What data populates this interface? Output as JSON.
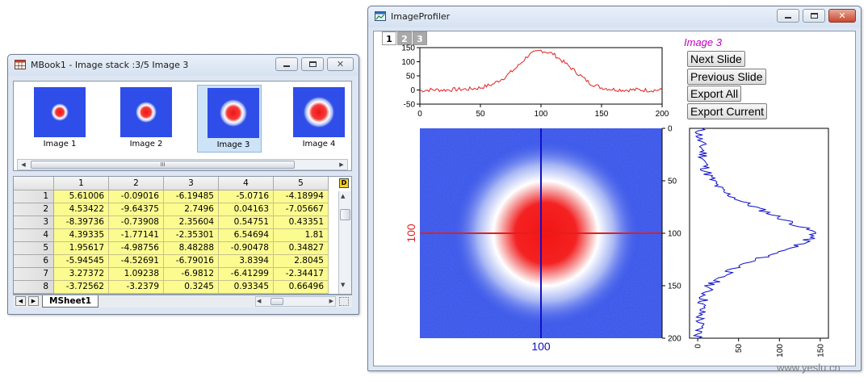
{
  "workbook": {
    "title": "MBook1 - Image stack :3/5 Image 3",
    "thumbnails": [
      {
        "label": "Image 1",
        "selected": false,
        "spot_size": 0.35
      },
      {
        "label": "Image 2",
        "selected": false,
        "spot_size": 0.42
      },
      {
        "label": "Image 3",
        "selected": true,
        "spot_size": 0.55
      },
      {
        "label": "Image 4",
        "selected": false,
        "spot_size": 0.62
      }
    ],
    "thumb_scroll_glyph": "III",
    "columns": [
      "1",
      "2",
      "3",
      "4",
      "5"
    ],
    "rows": [
      {
        "n": "1",
        "cells": [
          "5.61006",
          "-0.09016",
          "-6.19485",
          "-5.0716",
          "-4.18994"
        ]
      },
      {
        "n": "2",
        "cells": [
          "4.53422",
          "-9.64375",
          "2.7496",
          "0.04163",
          "-7.05667"
        ]
      },
      {
        "n": "3",
        "cells": [
          "-8.39736",
          "-0.73908",
          "2.35604",
          "0.54751",
          "0.43351"
        ]
      },
      {
        "n": "4",
        "cells": [
          "4.39335",
          "-1.77141",
          "-2.35301",
          "6.54694",
          "1.81"
        ]
      },
      {
        "n": "5",
        "cells": [
          "1.95617",
          "-4.98756",
          "8.48288",
          "-0.90478",
          "0.34827"
        ]
      },
      {
        "n": "6",
        "cells": [
          "-5.94545",
          "-4.52691",
          "-6.79016",
          "3.8394",
          "2.8045"
        ]
      },
      {
        "n": "7",
        "cells": [
          "3.27372",
          "1.09238",
          "-6.9812",
          "-6.41299",
          "-2.34417"
        ]
      },
      {
        "n": "8",
        "cells": [
          "-3.72562",
          "-3.2379",
          "0.3245",
          "0.93345",
          "0.66496"
        ]
      }
    ],
    "corner_badge": "D",
    "sheet_tab": "MSheet1"
  },
  "profiler": {
    "title": "ImageProfiler",
    "layer_tabs": [
      "1",
      "2",
      "3"
    ],
    "image_label": "Image 3",
    "buttons": [
      "Next Slide",
      "Previous Slide",
      "Export All",
      "Export Current"
    ],
    "crosshair": {
      "x": 100,
      "y": 100,
      "x_label": "100",
      "y_label": "100"
    },
    "colors": {
      "horizontal_profile": "#e02020",
      "vertical_profile": "#1010c8",
      "image_label": "#c000c0",
      "image_bg": "#2f4de8",
      "spot": "#f02020"
    }
  },
  "chart_data": [
    {
      "type": "line",
      "name_hint": "horizontal-profile",
      "xlim": [
        0,
        200
      ],
      "ylim": [
        -50,
        150
      ],
      "xticks": [
        "0",
        "50",
        "100",
        "150",
        "200"
      ],
      "yticks": [
        "150",
        "100",
        "50",
        "0",
        "-50"
      ],
      "x": [
        0,
        10,
        20,
        30,
        40,
        50,
        60,
        70,
        80,
        90,
        100,
        110,
        120,
        130,
        140,
        150,
        160,
        170,
        180,
        190,
        200
      ],
      "y": [
        -2,
        1,
        0,
        2,
        3,
        8,
        20,
        45,
        80,
        125,
        140,
        128,
        95,
        60,
        25,
        8,
        2,
        0,
        1,
        -1,
        0
      ]
    },
    {
      "type": "line",
      "name_hint": "vertical-profile",
      "xlim": [
        -10,
        160
      ],
      "ylim": [
        0,
        200
      ],
      "xticks": [
        "0",
        "50",
        "100",
        "150"
      ],
      "yticks": [
        "0",
        "50",
        "100",
        "150",
        "200"
      ],
      "y": [
        0,
        10,
        20,
        30,
        40,
        50,
        60,
        70,
        80,
        90,
        100,
        110,
        120,
        130,
        140,
        150,
        160,
        170,
        180,
        190,
        200
      ],
      "x": [
        3,
        2,
        6,
        8,
        10,
        18,
        30,
        55,
        85,
        115,
        145,
        128,
        90,
        55,
        30,
        15,
        8,
        5,
        3,
        2,
        1
      ]
    }
  ],
  "watermark": "www.yeslu.cn"
}
